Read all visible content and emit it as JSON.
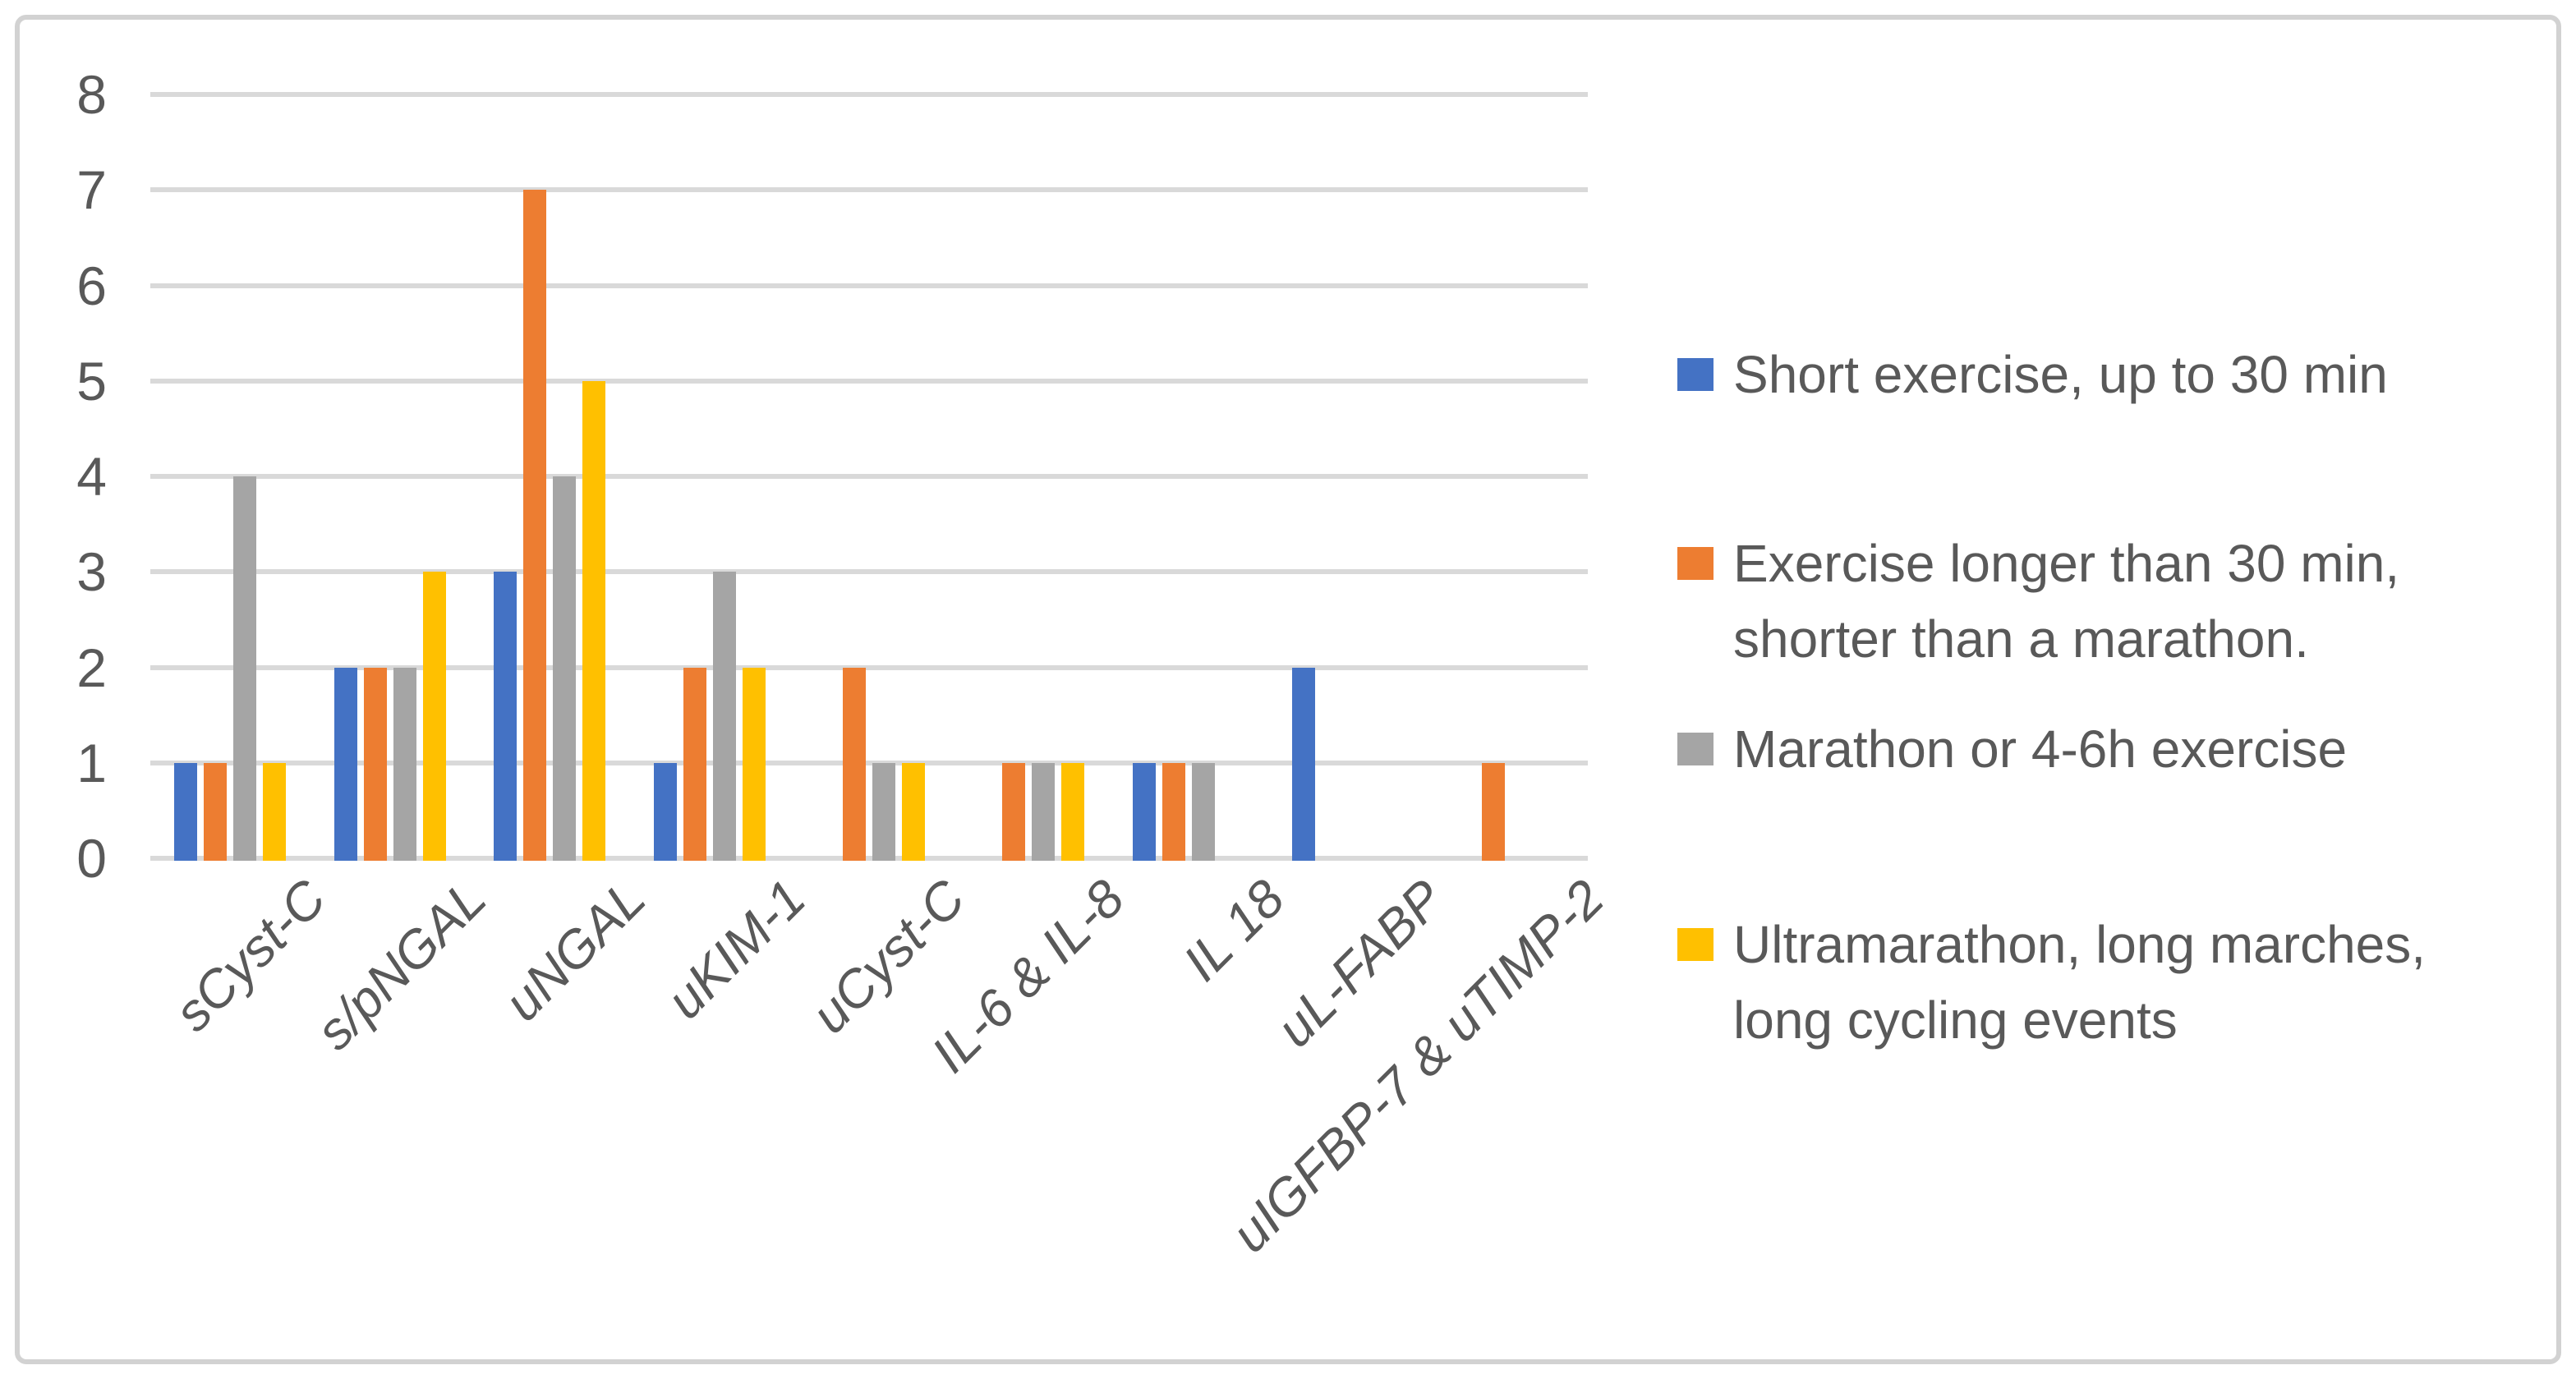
{
  "chart_data": {
    "type": "bar",
    "title": "",
    "xlabel": "",
    "ylabel": "",
    "categories": [
      "sCyst-C",
      "s/pNGAL",
      "uNGAL",
      "uKIM-1",
      "uCyst-C",
      "IL-6 & IL-8",
      "IL 18",
      "uL-FABP",
      "uIGFBP-7 & uTIMP-2"
    ],
    "series": [
      {
        "name": "Short exercise, up to 30 min",
        "color": "#4472C4",
        "values": [
          1,
          2,
          3,
          1,
          0,
          0,
          1,
          2,
          0
        ]
      },
      {
        "name": "Exercise longer than 30 min,\nshorter than a marathon.",
        "color": "#ED7D31",
        "values": [
          1,
          2,
          7,
          2,
          2,
          1,
          1,
          0,
          1
        ]
      },
      {
        "name": "Marathon or 4-6h exercise",
        "color": "#A5A5A5",
        "values": [
          4,
          2,
          4,
          3,
          1,
          1,
          1,
          0,
          0
        ]
      },
      {
        "name": "Ultramarathon, long marches,\nlong cycling events",
        "color": "#FFC000",
        "values": [
          1,
          3,
          5,
          2,
          1,
          1,
          0,
          0,
          0
        ]
      }
    ],
    "ylim": [
      0,
      8
    ],
    "yticks": [
      0,
      1,
      2,
      3,
      4,
      5,
      6,
      7,
      8
    ],
    "grid": true,
    "legend_position": "right"
  },
  "style": {
    "grid_color": "#d9d9d9",
    "axis_text_color": "#595959",
    "frame_border_color": "#d2d2d2",
    "background": "#ffffff"
  }
}
